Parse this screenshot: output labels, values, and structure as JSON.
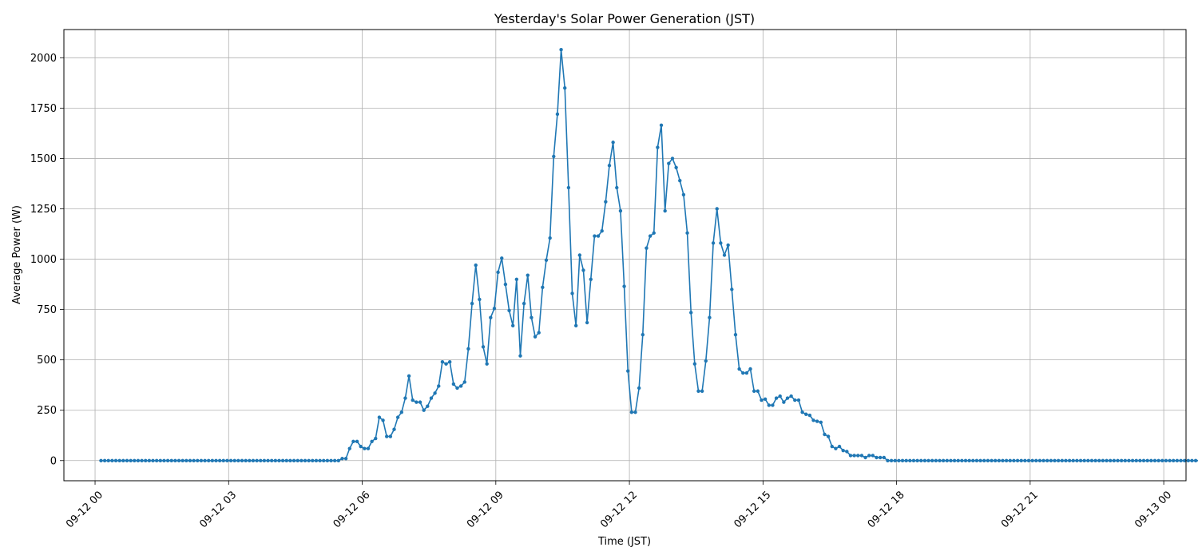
{
  "chart_data": {
    "type": "line",
    "title": "Yesterday's Solar Power Generation (JST)",
    "xlabel": "Time (JST)",
    "ylabel": "Average Power (W)",
    "xlim_hours": [
      -0.7,
      24.5
    ],
    "ylim": [
      -100,
      2140
    ],
    "grid": true,
    "series_color": "#1f77b4",
    "xticks": [
      {
        "h": 0,
        "label": "09-12 00"
      },
      {
        "h": 3,
        "label": "09-12 03"
      },
      {
        "h": 6,
        "label": "09-12 06"
      },
      {
        "h": 9,
        "label": "09-12 09"
      },
      {
        "h": 12,
        "label": "09-12 12"
      },
      {
        "h": 15,
        "label": "09-12 15"
      },
      {
        "h": 18,
        "label": "09-12 18"
      },
      {
        "h": 21,
        "label": "09-12 21"
      },
      {
        "h": 24,
        "label": "09-13 00"
      }
    ],
    "yticks": [
      0,
      250,
      500,
      750,
      1000,
      1250,
      1500,
      1750,
      2000
    ],
    "interval_minutes": 5,
    "start_hour": 0.1333,
    "values": [
      0,
      0,
      0,
      0,
      0,
      0,
      0,
      0,
      0,
      0,
      0,
      0,
      0,
      0,
      0,
      0,
      0,
      0,
      0,
      0,
      0,
      0,
      0,
      0,
      0,
      0,
      0,
      0,
      0,
      0,
      0,
      0,
      0,
      0,
      0,
      0,
      0,
      0,
      0,
      0,
      0,
      0,
      0,
      0,
      0,
      0,
      0,
      0,
      0,
      0,
      0,
      0,
      0,
      0,
      0,
      0,
      0,
      0,
      0,
      0,
      0,
      0,
      0,
      0,
      0,
      10,
      10,
      60,
      95,
      95,
      70,
      60,
      60,
      95,
      110,
      215,
      200,
      120,
      120,
      155,
      215,
      240,
      310,
      420,
      300,
      290,
      290,
      250,
      270,
      310,
      335,
      370,
      490,
      480,
      490,
      380,
      360,
      370,
      390,
      555,
      780,
      970,
      800,
      565,
      480,
      710,
      755,
      935,
      1005,
      875,
      745,
      670,
      900,
      520,
      780,
      920,
      710,
      615,
      635,
      860,
      995,
      1105,
      1510,
      1720,
      2040,
      1850,
      1355,
      830,
      670,
      1020,
      945,
      685,
      900,
      1115,
      1115,
      1140,
      1285,
      1465,
      1580,
      1355,
      1240,
      865,
      445,
      240,
      240,
      360,
      625,
      1055,
      1115,
      1130,
      1555,
      1665,
      1240,
      1475,
      1500,
      1455,
      1390,
      1320,
      1130,
      735,
      480,
      345,
      345,
      495,
      710,
      1080,
      1250,
      1080,
      1020,
      1070,
      850,
      625,
      455,
      435,
      435,
      455,
      345,
      345,
      300,
      305,
      275,
      275,
      310,
      320,
      290,
      310,
      320,
      300,
      300,
      240,
      230,
      225,
      200,
      195,
      190,
      130,
      120,
      70,
      60,
      70,
      50,
      45,
      25,
      25,
      25,
      25,
      15,
      25,
      25,
      15,
      15,
      15,
      0,
      0,
      0,
      0,
      0,
      0,
      0,
      0,
      0,
      0,
      0,
      0,
      0,
      0,
      0,
      0,
      0,
      0,
      0,
      0,
      0,
      0,
      0,
      0,
      0,
      0,
      0,
      0,
      0,
      0,
      0,
      0,
      0,
      0,
      0,
      0,
      0,
      0,
      0,
      0,
      0,
      0,
      0,
      0,
      0,
      0,
      0,
      0,
      0,
      0,
      0,
      0,
      0,
      0,
      0,
      0,
      0,
      0,
      0,
      0,
      0,
      0,
      0,
      0,
      0,
      0,
      0,
      0,
      0,
      0,
      0,
      0,
      0,
      0,
      0,
      0,
      0,
      0,
      0,
      0,
      0,
      0,
      0,
      0,
      0,
      0,
      0,
      0,
      0,
      0,
      0,
      0,
      0
    ]
  }
}
